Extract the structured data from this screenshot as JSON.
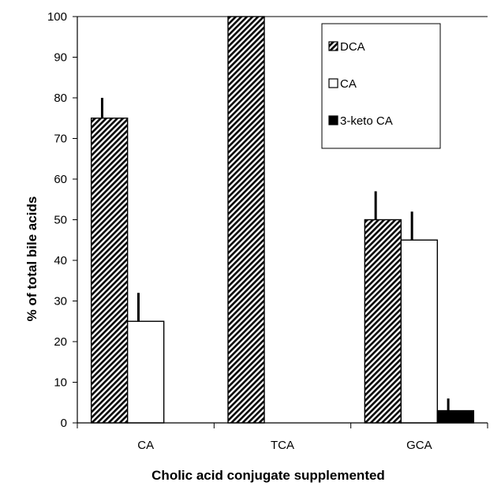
{
  "chart_data": {
    "type": "bar",
    "title": "",
    "xlabel": "Cholic acid conjugate supplemented",
    "ylabel": "% of total bile acids",
    "categories": [
      "CA",
      "TCA",
      "GCA"
    ],
    "series": [
      {
        "name": "DCA",
        "values": [
          75,
          100,
          50
        ],
        "errors": [
          5,
          0,
          7
        ],
        "fill": "hatch"
      },
      {
        "name": "CA",
        "values": [
          25,
          null,
          45
        ],
        "errors": [
          7,
          null,
          7
        ],
        "fill": "white"
      },
      {
        "name": "3-keto CA",
        "values": [
          null,
          null,
          3
        ],
        "errors": [
          null,
          null,
          3
        ],
        "fill": "black"
      }
    ],
    "ylim": [
      0,
      100
    ],
    "yticks": [
      "0",
      "10",
      "20",
      "30",
      "40",
      "50",
      "60",
      "70",
      "80",
      "90",
      "100"
    ],
    "grid": false,
    "legend_position": "top-right"
  }
}
